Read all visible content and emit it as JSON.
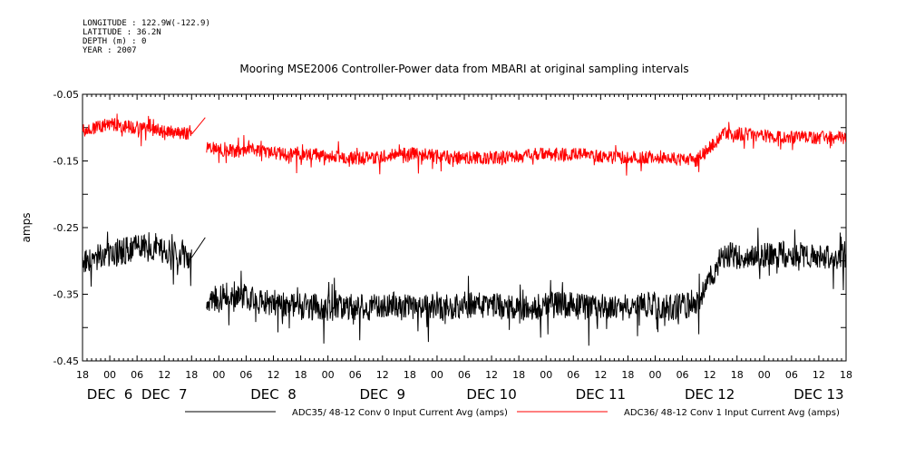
{
  "meta": {
    "longitude": "LONGITUDE : 122.9W(-122.9)",
    "latitude": "LATITUDE : 36.2N",
    "depth": "DEPTH (m) : 0",
    "year": "YEAR : 2007"
  },
  "chart_data": {
    "type": "line",
    "title": "Mooring MSE2006 Controller-Power data from MBARI at original sampling intervals",
    "ylabel": "amps",
    "xlabel": "",
    "ylim": [
      -0.45,
      -0.05
    ],
    "yticks": [
      "-0.05",
      "-0.15",
      "-0.25",
      "-0.35",
      "-0.45"
    ],
    "xlim_hours": [
      0,
      168
    ],
    "hour_ticks": [
      "18",
      "00",
      "06",
      "12",
      "18",
      "00",
      "06",
      "12",
      "18",
      "00",
      "06",
      "12",
      "18",
      "00",
      "06",
      "12",
      "18",
      "00",
      "06",
      "12",
      "18",
      "00",
      "06",
      "12",
      "18",
      "00",
      "06",
      "12",
      "18"
    ],
    "day_labels": [
      {
        "text": "DEC  6",
        "hour": 6
      },
      {
        "text": "DEC  7",
        "hour": 18
      },
      {
        "text": "DEC  8",
        "hour": 42
      },
      {
        "text": "DEC  9",
        "hour": 66
      },
      {
        "text": "DEC 10",
        "hour": 90
      },
      {
        "text": "DEC 11",
        "hour": 114
      },
      {
        "text": "DEC 12",
        "hour": 138
      },
      {
        "text": "DEC 13",
        "hour": 162
      }
    ],
    "grid": false,
    "legend_position": "bottom",
    "series": [
      {
        "name": "ADC35/ 48-12 Conv 0 Input Current Avg (amps)",
        "color": "#000000",
        "x": [
          0,
          6,
          12,
          18,
          24,
          27,
          27.3,
          33,
          39,
          45,
          51,
          57,
          63,
          69,
          75,
          81,
          87,
          93,
          99,
          105,
          111,
          117,
          123,
          129,
          135,
          141,
          147,
          153,
          159,
          165,
          168
        ],
        "y": [
          -0.3,
          -0.29,
          -0.28,
          -0.285,
          -0.295,
          -0.265,
          -0.36,
          -0.35,
          -0.36,
          -0.365,
          -0.37,
          -0.37,
          -0.37,
          -0.365,
          -0.37,
          -0.37,
          -0.365,
          -0.37,
          -0.37,
          -0.365,
          -0.37,
          -0.37,
          -0.365,
          -0.37,
          -0.365,
          -0.29,
          -0.295,
          -0.29,
          -0.29,
          -0.295,
          -0.29
        ]
      },
      {
        "name": "ADC36/ 48-12 Conv 1 Input Current Avg (amps)",
        "color": "#ff0000",
        "x": [
          0,
          6,
          12,
          18,
          24,
          27,
          27.3,
          33,
          39,
          45,
          51,
          57,
          63,
          69,
          75,
          81,
          87,
          93,
          99,
          105,
          111,
          117,
          123,
          129,
          135,
          141,
          147,
          153,
          159,
          165,
          168
        ],
        "y": [
          -0.105,
          -0.095,
          -0.1,
          -0.105,
          -0.11,
          -0.085,
          -0.13,
          -0.135,
          -0.135,
          -0.14,
          -0.14,
          -0.145,
          -0.145,
          -0.14,
          -0.14,
          -0.145,
          -0.145,
          -0.145,
          -0.14,
          -0.14,
          -0.14,
          -0.145,
          -0.145,
          -0.145,
          -0.15,
          -0.11,
          -0.11,
          -0.115,
          -0.115,
          -0.115,
          -0.115
        ]
      }
    ],
    "segments_hours": [
      [
        0,
        24,
        1
      ],
      [
        24,
        27,
        0
      ],
      [
        27.3,
        168,
        1
      ]
    ]
  }
}
